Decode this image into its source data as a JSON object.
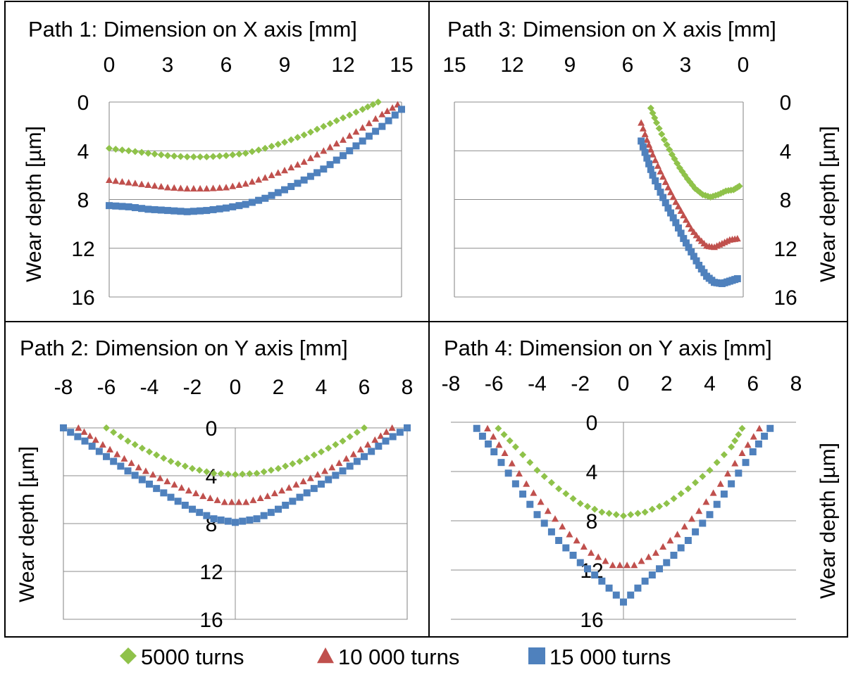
{
  "legend": {
    "items": [
      {
        "label": "5000 turns",
        "color": "#8fc24a",
        "marker": "diamond"
      },
      {
        "label": "10 000 turns",
        "color": "#c0504d",
        "marker": "triangle"
      },
      {
        "label": "15 000 turns",
        "color": "#4f81bd",
        "marker": "square"
      }
    ]
  },
  "chart_data": [
    {
      "type": "scatter",
      "title": "Path 1: Dimension on X axis [mm]",
      "xlabel": "",
      "ylabel": "Wear depth [µm]",
      "xlim": [
        0,
        15
      ],
      "xticks": [
        "0",
        "3",
        "6",
        "9",
        "12",
        "15"
      ],
      "ylim": [
        0,
        16
      ],
      "yticks": [
        "0",
        "4",
        "8",
        "12",
        "16"
      ],
      "y_inverted": true,
      "grid": "horizontal",
      "series": [
        {
          "name": "5000 turns",
          "x": [
            0,
            1,
            2,
            3,
            4,
            5,
            6,
            7,
            8,
            9,
            10,
            11,
            12,
            13,
            13.8
          ],
          "y": [
            3.8,
            4.0,
            4.2,
            4.4,
            4.5,
            4.5,
            4.4,
            4.2,
            3.8,
            3.3,
            2.7,
            2.0,
            1.3,
            0.6,
            0.0
          ]
        },
        {
          "name": "10 000 turns",
          "x": [
            0,
            1,
            2,
            3,
            4,
            5,
            6,
            7,
            8,
            9,
            10,
            11,
            12,
            13,
            14,
            14.8
          ],
          "y": [
            6.4,
            6.6,
            6.8,
            7.0,
            7.1,
            7.1,
            7.0,
            6.7,
            6.2,
            5.6,
            4.9,
            4.0,
            3.1,
            2.1,
            1.0,
            0.2
          ]
        },
        {
          "name": "15 000 turns",
          "x": [
            0,
            1,
            2,
            3,
            4,
            5,
            6,
            7,
            8,
            9,
            10,
            11,
            12,
            13,
            14,
            15
          ],
          "y": [
            8.5,
            8.6,
            8.8,
            8.9,
            9.0,
            8.9,
            8.7,
            8.4,
            7.9,
            7.2,
            6.4,
            5.5,
            4.4,
            3.2,
            2.0,
            0.6
          ]
        }
      ]
    },
    {
      "type": "scatter",
      "title": "Path 3: Dimension on X axis [mm]",
      "xlabel": "",
      "ylabel": "Wear depth [µm]",
      "xlim": [
        15,
        0
      ],
      "xticks": [
        "15",
        "12",
        "9",
        "6",
        "3",
        "0"
      ],
      "ylim": [
        0,
        16
      ],
      "yticks": [
        "0",
        "4",
        "8",
        "12",
        "16"
      ],
      "y_inverted": true,
      "x_reversed": true,
      "grid": "horizontal",
      "series": [
        {
          "name": "5000 turns",
          "x": [
            4.8,
            4.5,
            4.1,
            3.7,
            3.3,
            2.9,
            2.5,
            2.1,
            1.7,
            1.3,
            0.9,
            0.5,
            0.2
          ],
          "y": [
            0.5,
            1.7,
            3.1,
            4.3,
            5.4,
            6.3,
            7.1,
            7.6,
            7.8,
            7.6,
            7.3,
            7.2,
            6.9
          ]
        },
        {
          "name": "10 000 turns",
          "x": [
            5.3,
            5.0,
            4.7,
            4.3,
            3.9,
            3.5,
            3.1,
            2.7,
            2.3,
            1.9,
            1.5,
            1.1,
            0.7,
            0.3
          ],
          "y": [
            1.7,
            3.1,
            4.3,
            5.7,
            7.0,
            8.2,
            9.3,
            10.4,
            11.2,
            11.8,
            11.9,
            11.6,
            11.3,
            11.2
          ]
        },
        {
          "name": "15 000 turns",
          "x": [
            5.3,
            5.0,
            4.7,
            4.3,
            3.9,
            3.5,
            3.1,
            2.7,
            2.3,
            1.9,
            1.5,
            1.1,
            0.7,
            0.3
          ],
          "y": [
            3.2,
            4.6,
            6.0,
            7.4,
            8.7,
            9.9,
            11.2,
            12.3,
            13.4,
            14.3,
            14.8,
            14.9,
            14.7,
            14.5
          ]
        }
      ]
    },
    {
      "type": "scatter",
      "title": "Path 2: Dimension on Y axis [mm]",
      "xlabel": "",
      "ylabel": "Wear depth [µm]",
      "xlim": [
        -8,
        8
      ],
      "xticks": [
        "-8",
        "-6",
        "-4",
        "-2",
        "0",
        "2",
        "4",
        "6",
        "8"
      ],
      "ylim": [
        0,
        16
      ],
      "yticks": [
        "0",
        "4",
        "8",
        "12",
        "16"
      ],
      "y_inverted": true,
      "grid": "both",
      "series": [
        {
          "name": "5000 turns",
          "x": [
            -6,
            -5,
            -4,
            -3,
            -2,
            -1,
            0,
            1,
            2,
            3,
            4,
            5,
            6
          ],
          "y": [
            0.0,
            1.1,
            2.0,
            2.8,
            3.4,
            3.8,
            3.9,
            3.8,
            3.4,
            2.8,
            2.0,
            1.1,
            0.0
          ]
        },
        {
          "name": "10 000 turns",
          "x": [
            -7.3,
            -6.5,
            -5.5,
            -4.5,
            -3.5,
            -2.5,
            -1.5,
            -0.5,
            0.5,
            1.5,
            2.5,
            3.5,
            4.5,
            5.5,
            6.5,
            7.3
          ],
          "y": [
            0.0,
            1.0,
            2.2,
            3.3,
            4.2,
            5.0,
            5.7,
            6.2,
            6.2,
            5.7,
            5.0,
            4.2,
            3.3,
            2.2,
            1.0,
            0.0
          ]
        },
        {
          "name": "15 000 turns",
          "x": [
            -8,
            -7,
            -6,
            -5,
            -4,
            -3,
            -2,
            -1,
            0,
            1,
            2,
            3,
            4,
            5,
            6,
            7,
            8
          ],
          "y": [
            0.0,
            1.1,
            2.4,
            3.6,
            4.7,
            5.8,
            6.8,
            7.6,
            7.9,
            7.6,
            6.8,
            5.8,
            4.7,
            3.6,
            2.4,
            1.1,
            0.0
          ]
        }
      ]
    },
    {
      "type": "scatter",
      "title": "Path 4: Dimension on Y axis [mm]",
      "xlabel": "",
      "ylabel": "Wear depth [µm]",
      "xlim": [
        -8,
        8
      ],
      "xticks": [
        "-8",
        "-6",
        "-4",
        "-2",
        "0",
        "2",
        "4",
        "6",
        "8"
      ],
      "ylim": [
        0,
        16
      ],
      "yticks": [
        "0",
        "4",
        "8",
        "12",
        "16"
      ],
      "y_inverted": true,
      "grid": "both",
      "series": [
        {
          "name": "5000 turns",
          "x": [
            -5.8,
            -5,
            -4,
            -3,
            -2,
            -1,
            0,
            1,
            2,
            3,
            4,
            5,
            5.5
          ],
          "y": [
            0.5,
            2.0,
            3.9,
            5.4,
            6.6,
            7.3,
            7.6,
            7.3,
            6.6,
            5.4,
            3.9,
            2.0,
            0.5
          ]
        },
        {
          "name": "10 000 turns",
          "x": [
            -6.3,
            -5.5,
            -4.5,
            -3.5,
            -2.5,
            -1.5,
            -0.5,
            0.5,
            1.5,
            2.5,
            3.5,
            4.5,
            5.5,
            6.3
          ],
          "y": [
            0.5,
            2.5,
            5.0,
            7.2,
            9.1,
            10.6,
            11.6,
            11.6,
            10.6,
            9.1,
            7.2,
            5.0,
            2.5,
            0.5
          ]
        },
        {
          "name": "15 000 turns",
          "x": [
            -6.8,
            -6,
            -5,
            -4,
            -3,
            -2,
            -1,
            0,
            1,
            2,
            3,
            4,
            5,
            6,
            6.8
          ],
          "y": [
            0.5,
            2.4,
            5.0,
            7.5,
            9.6,
            11.4,
            12.9,
            14.6,
            12.9,
            11.4,
            9.6,
            7.5,
            5.0,
            2.4,
            0.5
          ]
        }
      ]
    }
  ]
}
